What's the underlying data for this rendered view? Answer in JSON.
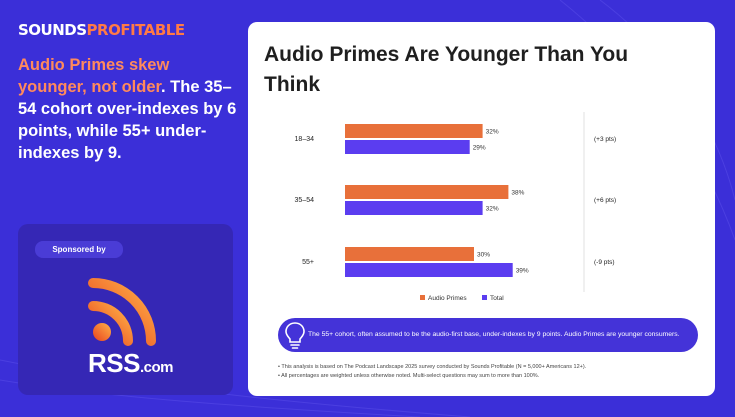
{
  "brand": {
    "logo_part1": "SOUNDS",
    "logo_part2": "PROFITABLE"
  },
  "headline": {
    "highlight": "Audio Primes skew younger, not older",
    "rest": ". The 35–54 cohort over-indexes by 6 points, while 55+ under-indexes by 9."
  },
  "sponsor": {
    "label": "Sponsored by",
    "logo_text_main": "RSS",
    "logo_text_suffix": ".com"
  },
  "card": {
    "title": "Audio Primes Are Younger Than You Think",
    "callout": "The 55+ cohort, often assumed to be the audio-first base, under-indexes by 9 points. Audio Primes are younger consumers.",
    "notes": [
      "This analysis is based on The Podcast Landscape 2025 survey conducted by Sounds Profitable (N = 5,000+ Americans 12+).",
      "All percentages are weighted unless otherwise noted. Multi-select questions may sum to more than 100%."
    ]
  },
  "colors": {
    "audio_primes": "#e8703a",
    "total": "#5b3df0",
    "brand_blue": "#3b2fd8",
    "accent_orange": "#ff7a45"
  },
  "chart_data": {
    "type": "bar",
    "orientation": "horizontal",
    "title": "Audio Primes Are Younger Than You Think",
    "categories": [
      "18–34",
      "35–54",
      "55+"
    ],
    "series": [
      {
        "name": "Audio Primes",
        "values": [
          32,
          38,
          30
        ]
      },
      {
        "name": "Total",
        "values": [
          29,
          32,
          39
        ]
      }
    ],
    "value_labels": {
      "Audio Primes": [
        "32%",
        "38%",
        "30%"
      ],
      "Total": [
        "29%",
        "32%",
        "39%"
      ]
    },
    "differences": [
      "(+3 pts)",
      "(+6 pts)",
      "(-9 pts)"
    ],
    "xlim": [
      0,
      100
    ],
    "legend_position": "bottom",
    "grid": false
  }
}
